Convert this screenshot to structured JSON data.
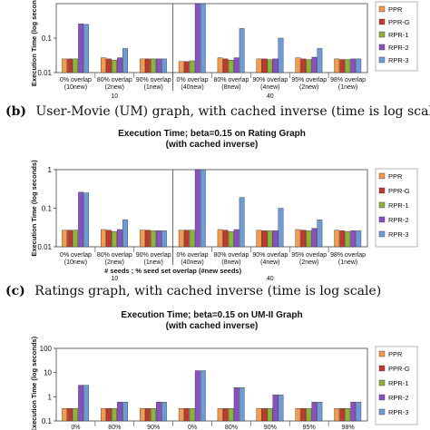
{
  "colors": {
    "PPR": "#F59B4C",
    "PPR-G": "#C0392B",
    "RPR-1": "#8DB33A",
    "RPR-2": "#8A4FC2",
    "RPR-3": "#6C9BD8"
  },
  "chart_data": [
    {
      "type": "bar",
      "title": "",
      "subtitle": "",
      "ylabel": "Execution Time (log seconds)",
      "xlabel": "",
      "y_scale": "log",
      "ylim": [
        0.01,
        1
      ],
      "yticks": [
        "0.1",
        "0.01"
      ],
      "categories": [
        [
          "0% overlap",
          "(10new)"
        ],
        [
          "80% overlap",
          "(2new)"
        ],
        [
          "90% overlap",
          "(1new)"
        ],
        [
          "0% overlap",
          "(40new)"
        ],
        [
          "80% overlap",
          "(8new)"
        ],
        [
          "90% overlap",
          "(4new)"
        ],
        [
          "95% overlap",
          "(2new)"
        ],
        [
          "98% overlap",
          "(1new)"
        ]
      ],
      "groups": [
        "10",
        "40"
      ],
      "legend": [
        "PPR",
        "PPR-G",
        "RPR-1",
        "RPR-2",
        "RPR-3"
      ],
      "series": [
        {
          "name": "PPR",
          "values": [
            0.025,
            0.027,
            0.025,
            0.021,
            0.027,
            0.025,
            0.027,
            0.025
          ]
        },
        {
          "name": "PPR-G",
          "values": [
            0.025,
            0.025,
            0.025,
            0.021,
            0.025,
            0.025,
            0.025,
            0.024
          ]
        },
        {
          "name": "RPR-1",
          "values": [
            0.025,
            0.023,
            0.025,
            0.022,
            0.023,
            0.024,
            0.024,
            0.024
          ]
        },
        {
          "name": "RPR-2",
          "values": [
            0.26,
            0.027,
            0.025,
            1.0,
            0.027,
            0.025,
            0.028,
            0.025
          ]
        },
        {
          "name": "RPR-3",
          "values": [
            0.25,
            0.05,
            0.025,
            1.0,
            0.19,
            0.1,
            0.05,
            0.025
          ]
        }
      ],
      "legend_partial_first": "PPR",
      "caption": "",
      "caption_label": ""
    },
    {
      "type": "bar",
      "title": "Execution Time; beta=0.15 on Rating Graph",
      "subtitle": "(with cached inverse)",
      "ylabel": "Execution Time (log seconds)",
      "xlabel": "# seeds ; % seed set overlap (#new seeds)",
      "y_scale": "log",
      "ylim": [
        0.01,
        1
      ],
      "yticks": [
        "1",
        "0.1",
        "0.01"
      ],
      "categories": [
        [
          "0% overlap",
          "(10new)"
        ],
        [
          "80% overlap",
          "(2new)"
        ],
        [
          "90% overlap",
          "(1new)"
        ],
        [
          "0% overlap",
          "(40new)"
        ],
        [
          "80% overlap",
          "(8new)"
        ],
        [
          "90% overlap",
          "(4new)"
        ],
        [
          "95% overlap",
          "(2new)"
        ],
        [
          "98% overlap",
          "(1new)"
        ]
      ],
      "groups": [
        "10",
        "40"
      ],
      "legend": [
        "PPR",
        "PPR-G",
        "RPR-1",
        "RPR-2",
        "RPR-3"
      ],
      "series": [
        {
          "name": "PPR",
          "values": [
            0.027,
            0.028,
            0.027,
            0.027,
            0.028,
            0.027,
            0.028,
            0.027
          ]
        },
        {
          "name": "PPR-G",
          "values": [
            0.027,
            0.027,
            0.027,
            0.027,
            0.027,
            0.026,
            0.027,
            0.026
          ]
        },
        {
          "name": "RPR-1",
          "values": [
            0.027,
            0.025,
            0.026,
            0.027,
            0.025,
            0.026,
            0.026,
            0.025
          ]
        },
        {
          "name": "RPR-2",
          "values": [
            0.26,
            0.028,
            0.026,
            1.0,
            0.028,
            0.026,
            0.03,
            0.026
          ]
        },
        {
          "name": "RPR-3",
          "values": [
            0.25,
            0.05,
            0.026,
            1.0,
            0.19,
            0.1,
            0.05,
            0.026
          ]
        }
      ],
      "caption": "Ratings graph, with cached inverse (time is log scale)",
      "caption_label": "(c)"
    },
    {
      "type": "bar",
      "title": "Execution Time; beta=0.15 on UM-II Graph",
      "subtitle": "(with cached inverse)",
      "ylabel": "Execution Time (log seconds)",
      "xlabel": "",
      "y_scale": "log",
      "ylim": [
        0.1,
        100
      ],
      "yticks": [
        "100",
        "10",
        "1",
        "0.1"
      ],
      "categories": [
        [
          "0%",
          ""
        ],
        [
          "80%",
          ""
        ],
        [
          "90%",
          ""
        ],
        [
          "0%",
          ""
        ],
        [
          "80%",
          ""
        ],
        [
          "90%",
          ""
        ],
        [
          "95%",
          ""
        ],
        [
          "98%",
          ""
        ]
      ],
      "groups": [],
      "legend": [
        "PPR",
        "PPR-G",
        "RPR-1",
        "RPR-2",
        "RPR-3"
      ],
      "series": [
        {
          "name": "PPR",
          "values": [
            0.33,
            0.33,
            0.33,
            0.33,
            0.33,
            0.33,
            0.33,
            0.33
          ]
        },
        {
          "name": "PPR-G",
          "values": [
            0.33,
            0.33,
            0.33,
            0.33,
            0.33,
            0.33,
            0.33,
            0.33
          ]
        },
        {
          "name": "RPR-1",
          "values": [
            0.33,
            0.33,
            0.33,
            0.33,
            0.33,
            0.33,
            0.33,
            0.33
          ]
        },
        {
          "name": "RPR-2",
          "values": [
            3.0,
            0.6,
            0.6,
            12.0,
            2.4,
            1.2,
            0.6,
            0.6
          ]
        },
        {
          "name": "RPR-3",
          "values": [
            3.0,
            0.6,
            0.6,
            12.0,
            2.4,
            1.2,
            0.6,
            0.6
          ]
        }
      ],
      "caption": "",
      "caption_label": ""
    }
  ],
  "captions": {
    "b_label": "(b)",
    "b_text": "User-Movie (UM) graph, with cached inverse (time is log scale)"
  }
}
